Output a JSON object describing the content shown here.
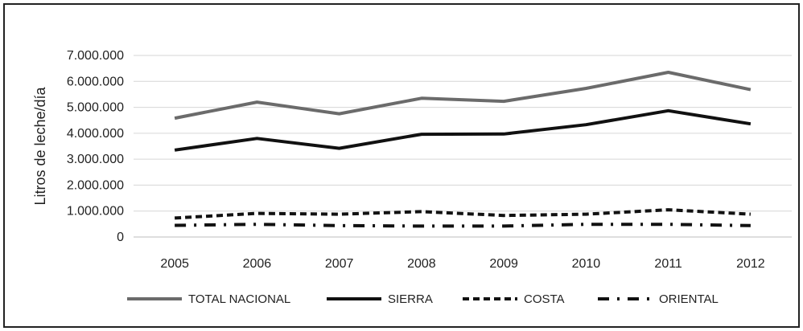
{
  "chart_data": {
    "type": "line",
    "title": "",
    "xlabel": "",
    "ylabel": "Litros de leche/día",
    "ylim": [
      0,
      7000000
    ],
    "y_ticks": [
      0,
      1000000,
      2000000,
      3000000,
      4000000,
      5000000,
      6000000,
      7000000
    ],
    "y_tick_labels": [
      "0",
      "1.000.000",
      "2.000.000",
      "3.000.000",
      "4.000.000",
      "5.000.000",
      "6.000.000",
      "7.000.000"
    ],
    "categories": [
      "2005",
      "2006",
      "2007",
      "2008",
      "2009",
      "2010",
      "2011",
      "2012"
    ],
    "grid": true,
    "legend_position": "bottom",
    "series": [
      {
        "name": "TOTAL NACIONAL",
        "values": [
          4580000,
          5200000,
          4750000,
          5350000,
          5230000,
          5730000,
          6350000,
          5680000
        ],
        "color": "#6b6b6b",
        "style": "solid"
      },
      {
        "name": "SIERRA",
        "values": [
          3350000,
          3800000,
          3420000,
          3960000,
          3970000,
          4330000,
          4870000,
          4360000
        ],
        "color": "#111111",
        "style": "solid"
      },
      {
        "name": "COSTA",
        "values": [
          730000,
          910000,
          880000,
          980000,
          830000,
          880000,
          1050000,
          880000
        ],
        "color": "#111111",
        "style": "dashed"
      },
      {
        "name": "ORIENTAL",
        "values": [
          450000,
          490000,
          440000,
          420000,
          420000,
          490000,
          490000,
          440000
        ],
        "color": "#111111",
        "style": "dashdot"
      }
    ]
  }
}
